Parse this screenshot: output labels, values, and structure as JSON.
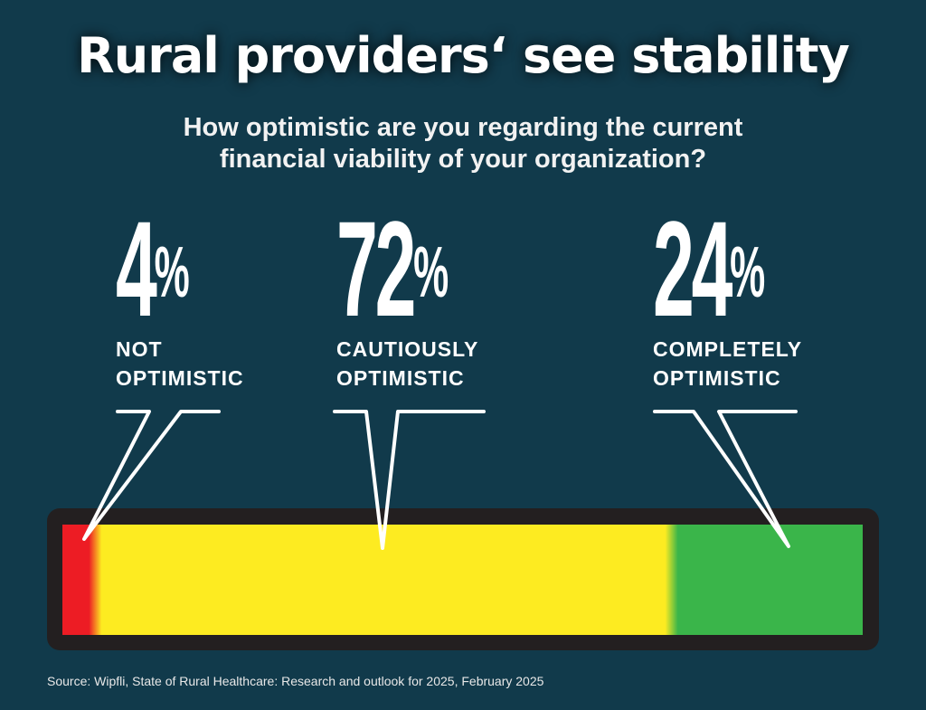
{
  "title": "Rural providers‘ see stability",
  "subtitle_line1": "How optimistic are you regarding the current",
  "subtitle_line2": "financial viability of your organization?",
  "source": "Source: Wipfli, State of Rural Healthcare: Research and outlook for 2025, February 2025",
  "chart_data": {
    "type": "bar",
    "orientation": "horizontal-stacked",
    "title": "Rural providers‘ see stability",
    "subtitle": "How optimistic are you regarding the current financial viability of your organization?",
    "categories": [
      "Not optimistic",
      "Cautiously optimistic",
      "Completely optimistic"
    ],
    "values": [
      4,
      72,
      24
    ],
    "unit": "%",
    "colors": [
      "#ed1c24",
      "#fdeb21",
      "#3ab54a"
    ],
    "stats": [
      {
        "value": "4",
        "symbol": "%",
        "label1": "NOT",
        "label2": "OPTIMISTIC"
      },
      {
        "value": "72",
        "symbol": "%",
        "label1": "CAUTIOUSLY",
        "label2": "OPTIMISTIC"
      },
      {
        "value": "24",
        "symbol": "%",
        "label1": "COMPLETELY",
        "label2": "OPTIMISTIC"
      }
    ]
  },
  "colors": {
    "background": "#113a4b",
    "bar_frame": "#231f20",
    "pointer": "#ffffff"
  }
}
